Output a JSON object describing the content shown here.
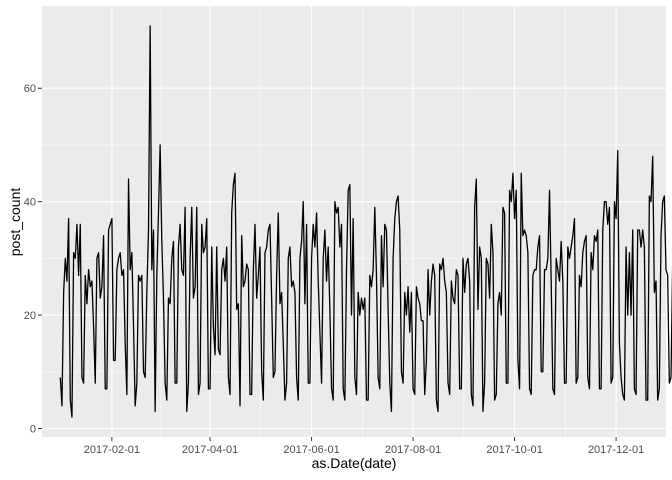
{
  "chart_data": {
    "type": "line",
    "title": "",
    "xlabel": "as.Date(date)",
    "ylabel": "post_count",
    "x_range": [
      "2016-12-21",
      "2017-12-31"
    ],
    "ylim": [
      -1.5,
      74.5
    ],
    "x_ticks": [
      {
        "date": "2017-02-01",
        "label": "2017-02-01"
      },
      {
        "date": "2017-04-01",
        "label": "2017-04-01"
      },
      {
        "date": "2017-06-01",
        "label": "2017-06-01"
      },
      {
        "date": "2017-08-01",
        "label": "2017-08-01"
      },
      {
        "date": "2017-10-01",
        "label": "2017-10-01"
      },
      {
        "date": "2017-12-01",
        "label": "2017-12-01"
      }
    ],
    "y_ticks": [
      {
        "value": 0,
        "label": "0"
      },
      {
        "value": 20,
        "label": "20"
      },
      {
        "value": 40,
        "label": "40"
      },
      {
        "value": 60,
        "label": "60"
      }
    ],
    "grid": true,
    "series": [
      {
        "name": "post_count",
        "start_date": "2017-01-01",
        "step_days": 1,
        "color": "#000000",
        "values": [
          9,
          4,
          24,
          30,
          26,
          37,
          5,
          2,
          31,
          30,
          36,
          27,
          36,
          9,
          8,
          27,
          22,
          28,
          25,
          26,
          18,
          8,
          30,
          31,
          23,
          25,
          34,
          7,
          7,
          35,
          36,
          37,
          12,
          12,
          28,
          30,
          31,
          27,
          28,
          15,
          6,
          44,
          28,
          31,
          18,
          4,
          8,
          27,
          26,
          27,
          10,
          9,
          24,
          35,
          71,
          28,
          35,
          3,
          27,
          38,
          50,
          33,
          23,
          8,
          5,
          23,
          22,
          30,
          33,
          8,
          8,
          32,
          36,
          28,
          27,
          39,
          3,
          8,
          30,
          39,
          23,
          25,
          39,
          6,
          8,
          36,
          31,
          32,
          37,
          7,
          7,
          32,
          18,
          13,
          32,
          14,
          13,
          28,
          30,
          26,
          32,
          9,
          6,
          38,
          43,
          45,
          21,
          22,
          4,
          34,
          25,
          26,
          29,
          28,
          6,
          6,
          28,
          36,
          23,
          27,
          32,
          10,
          5,
          31,
          32,
          35,
          36,
          23,
          9,
          10,
          27,
          38,
          22,
          24,
          15,
          5,
          8,
          30,
          32,
          25,
          26,
          24,
          9,
          5,
          30,
          33,
          40,
          22,
          36,
          8,
          8,
          30,
          36,
          32,
          38,
          26,
          17,
          8,
          30,
          35,
          26,
          32,
          21,
          7,
          5,
          40,
          38,
          39,
          32,
          36,
          7,
          5,
          28,
          42,
          43,
          20,
          37,
          9,
          6,
          24,
          20,
          23,
          21,
          23,
          5,
          5,
          27,
          25,
          28,
          39,
          27,
          9,
          7,
          34,
          25,
          36,
          35,
          21,
          8,
          3,
          30,
          37,
          40,
          41,
          35,
          10,
          8,
          24,
          20,
          25,
          17,
          24,
          7,
          6,
          25,
          23,
          22,
          19,
          19,
          6,
          12,
          28,
          20,
          26,
          29,
          27,
          5,
          3,
          29,
          28,
          30,
          26,
          24,
          8,
          6,
          26,
          23,
          22,
          28,
          27,
          7,
          7,
          30,
          24,
          29,
          30,
          26,
          6,
          4,
          39,
          44,
          21,
          32,
          30,
          3,
          8,
          30,
          29,
          23,
          36,
          31,
          5,
          6,
          22,
          24,
          20,
          39,
          38,
          8,
          8,
          42,
          40,
          45,
          37,
          42,
          12,
          7,
          45,
          34,
          35,
          34,
          31,
          7,
          6,
          27,
          28,
          28,
          32,
          34,
          10,
          10,
          28,
          28,
          30,
          42,
          26,
          7,
          6,
          30,
          28,
          26,
          33,
          26,
          8,
          8,
          32,
          30,
          32,
          34,
          37,
          8,
          9,
          27,
          25,
          31,
          33,
          34,
          9,
          7,
          31,
          28,
          34,
          33,
          35,
          7,
          7,
          35,
          40,
          40,
          36,
          39,
          8,
          9,
          40,
          37,
          49,
          15,
          9,
          6,
          5,
          32,
          20,
          31,
          20,
          35,
          7,
          6,
          35,
          35,
          32,
          35,
          32,
          5,
          5,
          41,
          40,
          48,
          24,
          26,
          5,
          7,
          34,
          40,
          41,
          28,
          27,
          8,
          9,
          29,
          40,
          41,
          27,
          28,
          12,
          15,
          15,
          8,
          11,
          7,
          9,
          6
        ]
      }
    ]
  }
}
